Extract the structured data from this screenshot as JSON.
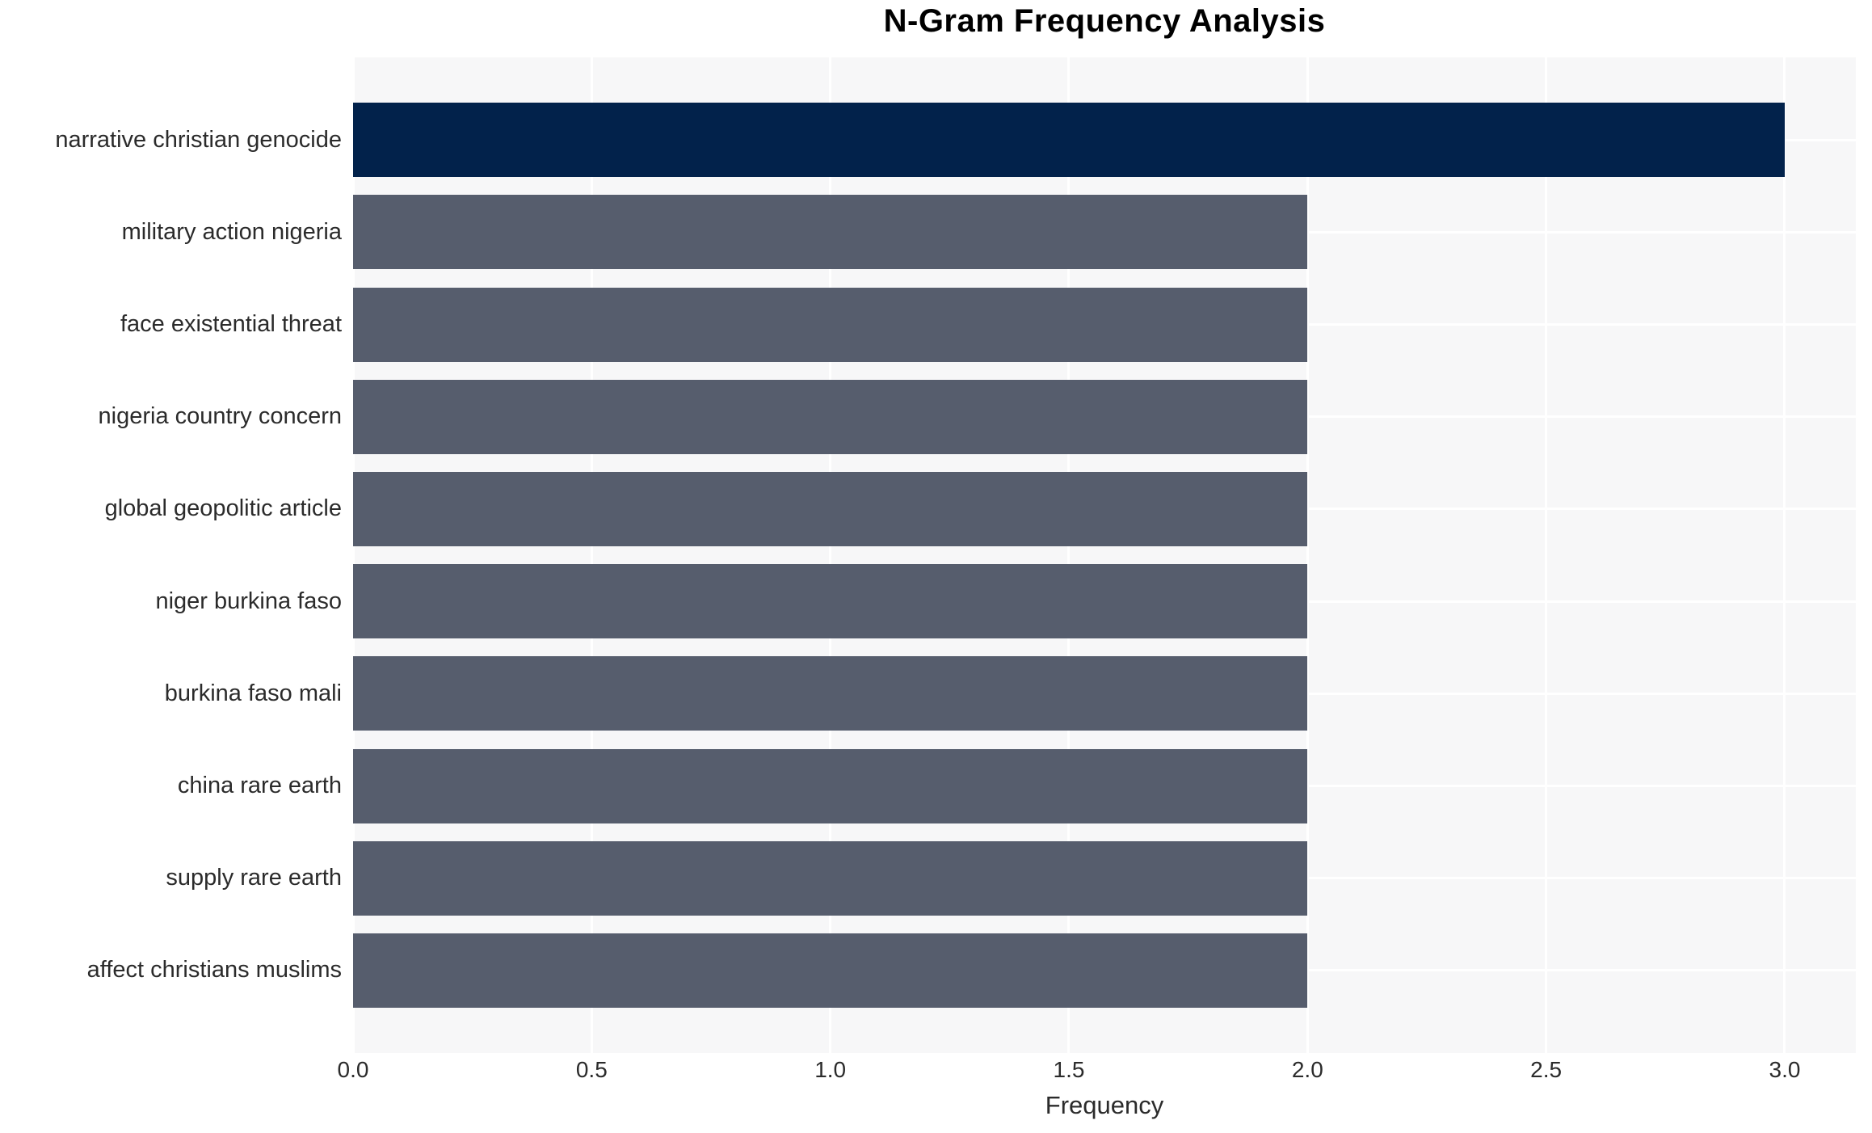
{
  "chart_data": {
    "type": "bar",
    "orientation": "horizontal",
    "title": "N-Gram Frequency Analysis",
    "xlabel": "Frequency",
    "ylabel": "",
    "categories": [
      "narrative christian genocide",
      "military action nigeria",
      "face existential threat",
      "nigeria country concern",
      "global geopolitic article",
      "niger burkina faso",
      "burkina faso mali",
      "china rare earth",
      "supply rare earth",
      "affect christians muslims"
    ],
    "values": [
      3.0,
      2.0,
      2.0,
      2.0,
      2.0,
      2.0,
      2.0,
      2.0,
      2.0,
      2.0
    ],
    "x_ticks": [
      "0.0",
      "0.5",
      "1.0",
      "1.5",
      "2.0",
      "2.5",
      "3.0"
    ],
    "xlim": [
      0,
      3.149
    ],
    "grid": true,
    "legend": false,
    "highlight_index": 0,
    "colors": {
      "highlight_bar": "#02224b",
      "default_bar": "#565d6d",
      "plot_background": "#f7f7f8",
      "gridline": "#ffffff",
      "tick_text": "#2b2b2b",
      "title_text": "#000000"
    }
  }
}
